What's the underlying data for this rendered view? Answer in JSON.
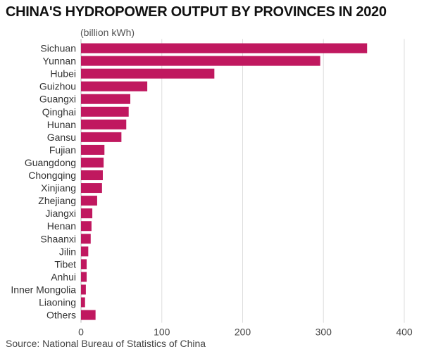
{
  "chart_data": {
    "type": "bar",
    "orientation": "horizontal",
    "title": "CHINA'S HYDROPOWER OUTPUT BY PROVINCES IN 2020",
    "unit_label": "(billion kWh)",
    "categories": [
      "Sichuan",
      "Yunnan",
      "Hubei",
      "Guizhou",
      "Guangxi",
      "Qinghai",
      "Hunan",
      "Gansu",
      "Fujian",
      "Guangdong",
      "Chongqing",
      "Xinjiang",
      "Zhejiang",
      "Jiangxi",
      "Henan",
      "Shaanxi",
      "Jilin",
      "Tibet",
      "Anhui",
      "Inner Mongolia",
      "Liaoning",
      "Others"
    ],
    "values": [
      354,
      296,
      165,
      82,
      61,
      59,
      56,
      50,
      29,
      28,
      27,
      26,
      20,
      14,
      13,
      12,
      9,
      7,
      7,
      6,
      5,
      18
    ],
    "xlim": [
      0,
      400
    ],
    "xticks": [
      0,
      100,
      200,
      300,
      400
    ],
    "grid": true,
    "bar_color": "#c0185f",
    "source": "Source: National Bureau of Statistics of China"
  }
}
